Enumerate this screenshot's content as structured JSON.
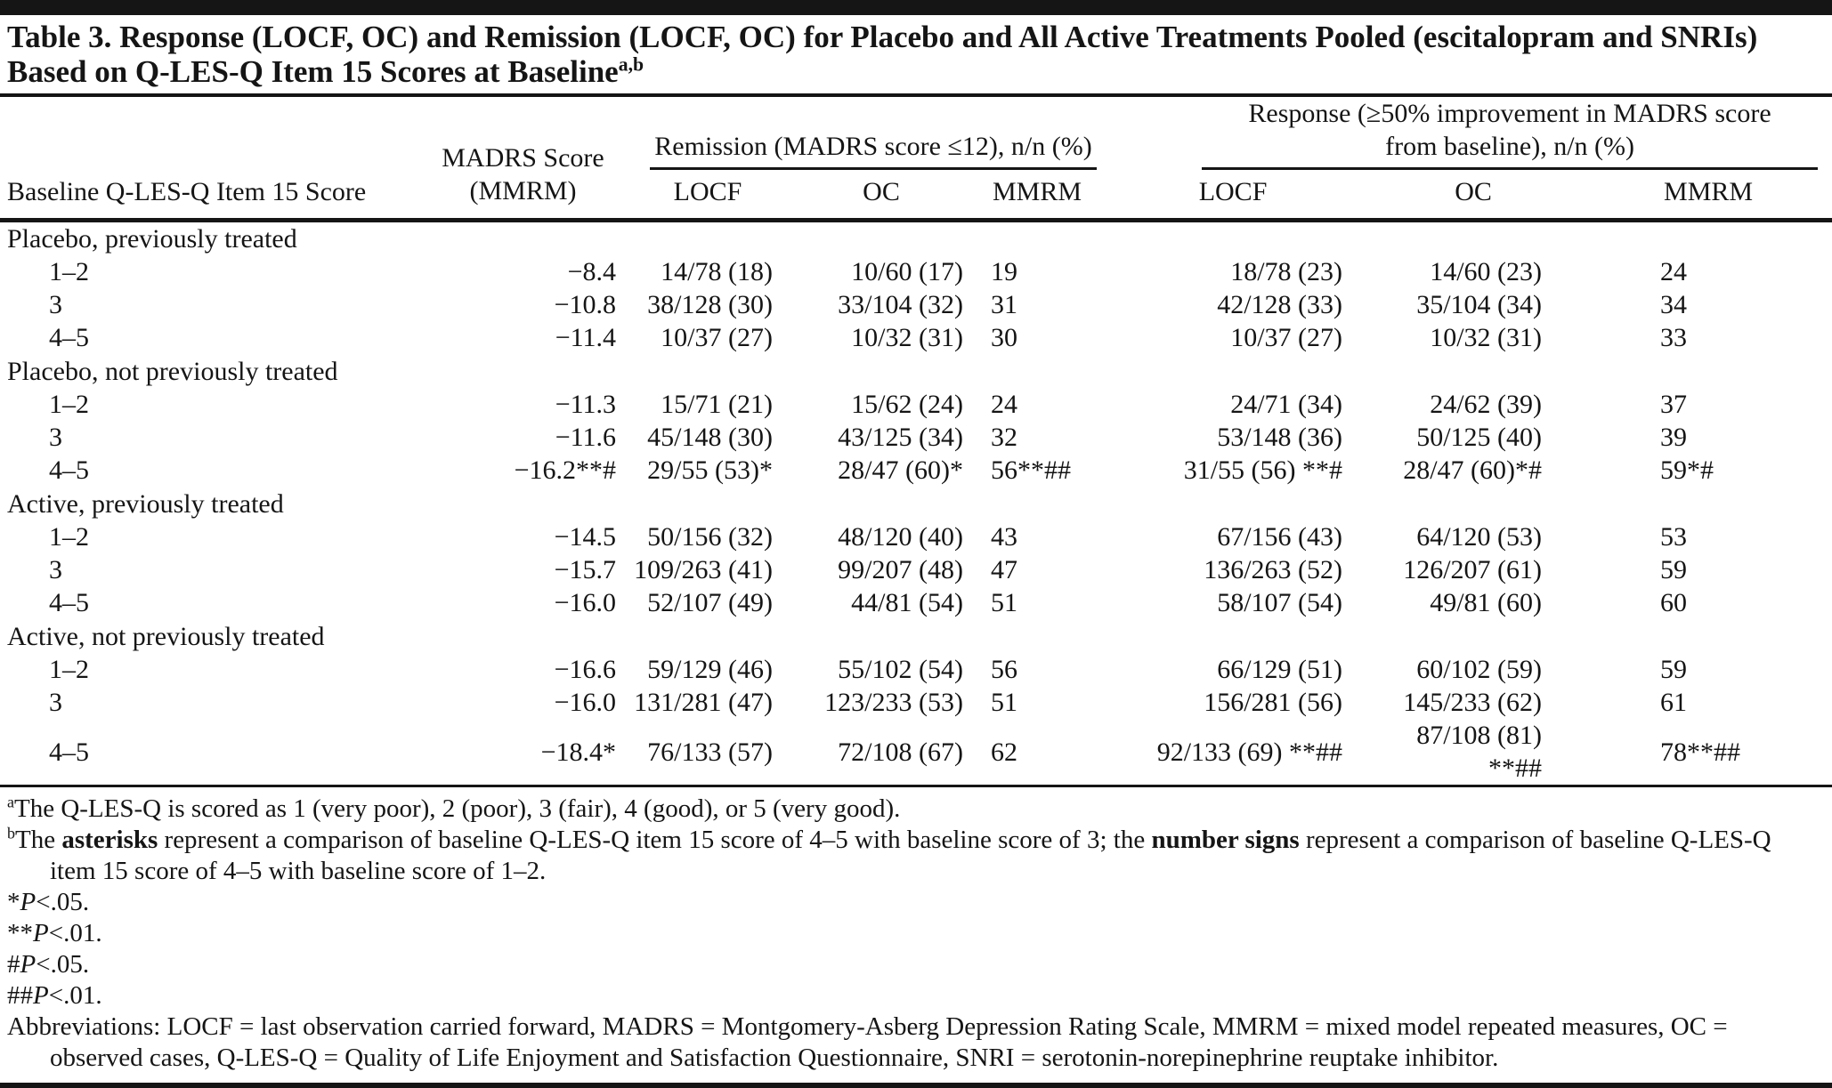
{
  "title": {
    "text": "Table 3. Response (LOCF, OC) and Remission (LOCF, OC) for Placebo and All Active Treatments Pooled (escitalopram and SNRIs) Based on Q-LES-Q Item 15 Scores at Baseline",
    "superscript": "a,b"
  },
  "header": {
    "row_label_column": "Baseline Q-LES-Q Item 15 Score",
    "madrs_column_line1": "MADRS Score",
    "madrs_column_line2": "(MMRM)",
    "remission_group": "Remission (MADRS score ≤12), n/n (%)",
    "response_group_line1": "Response (≥50% improvement in MADRS score",
    "response_group_line2": "from baseline), n/n (%)",
    "sub_columns": {
      "remission_locf": "LOCF",
      "remission_oc": "OC",
      "remission_mmrm": "MMRM",
      "response_locf": "LOCF",
      "response_oc": "OC",
      "response_mmrm": "MMRM"
    }
  },
  "sections": [
    {
      "label": "Placebo, previously treated",
      "rows": [
        {
          "score": "1–2",
          "madrs": "−8.4",
          "remission_locf": "14/78 (18)",
          "remission_oc": "10/60 (17)",
          "remission_mmrm": "19",
          "response_locf": "18/78 (23)",
          "response_oc": "14/60 (23)",
          "response_mmrm": "24"
        },
        {
          "score": "3",
          "madrs": "−10.8",
          "remission_locf": "38/128 (30)",
          "remission_oc": "33/104 (32)",
          "remission_mmrm": "31",
          "response_locf": "42/128 (33)",
          "response_oc": "35/104 (34)",
          "response_mmrm": "34"
        },
        {
          "score": "4–5",
          "madrs": "−11.4",
          "remission_locf": "10/37 (27)",
          "remission_oc": "10/32 (31)",
          "remission_mmrm": "30",
          "response_locf": "10/37 (27)",
          "response_oc": "10/32 (31)",
          "response_mmrm": "33"
        }
      ]
    },
    {
      "label": "Placebo, not previously treated",
      "rows": [
        {
          "score": "1–2",
          "madrs": "−11.3",
          "remission_locf": "15/71 (21)",
          "remission_oc": "15/62 (24)",
          "remission_mmrm": "24",
          "response_locf": "24/71 (34)",
          "response_oc": "24/62 (39)",
          "response_mmrm": "37"
        },
        {
          "score": "3",
          "madrs": "−11.6",
          "remission_locf": "45/148 (30)",
          "remission_oc": "43/125 (34)",
          "remission_mmrm": "32",
          "response_locf": "53/148 (36)",
          "response_oc": "50/125 (40)",
          "response_mmrm": "39"
        },
        {
          "score": "4–5",
          "madrs": "−16.2**#",
          "remission_locf": "29/55 (53)*",
          "remission_oc": "28/47 (60)*",
          "remission_mmrm": "56**##",
          "response_locf": "31/55 (56) **#",
          "response_oc": "28/47 (60)*#",
          "response_mmrm": "59*#"
        }
      ]
    },
    {
      "label": "Active, previously treated",
      "rows": [
        {
          "score": "1–2",
          "madrs": "−14.5",
          "remission_locf": "50/156 (32)",
          "remission_oc": "48/120 (40)",
          "remission_mmrm": "43",
          "response_locf": "67/156 (43)",
          "response_oc": "64/120 (53)",
          "response_mmrm": "53"
        },
        {
          "score": "3",
          "madrs": "−15.7",
          "remission_locf": "109/263 (41)",
          "remission_oc": "99/207 (48)",
          "remission_mmrm": "47",
          "response_locf": "136/263 (52)",
          "response_oc": "126/207 (61)",
          "response_mmrm": "59"
        },
        {
          "score": "4–5",
          "madrs": "−16.0",
          "remission_locf": "52/107 (49)",
          "remission_oc": "44/81 (54)",
          "remission_mmrm": "51",
          "response_locf": "58/107 (54)",
          "response_oc": "49/81 (60)",
          "response_mmrm": "60"
        }
      ]
    },
    {
      "label": "Active, not previously treated",
      "rows": [
        {
          "score": "1–2",
          "madrs": "−16.6",
          "remission_locf": "59/129 (46)",
          "remission_oc": "55/102 (54)",
          "remission_mmrm": "56",
          "response_locf": "66/129 (51)",
          "response_oc": "60/102 (59)",
          "response_mmrm": "59"
        },
        {
          "score": "3",
          "madrs": "−16.0",
          "remission_locf": "131/281 (47)",
          "remission_oc": "123/233 (53)",
          "remission_mmrm": "51",
          "response_locf": "156/281 (56)",
          "response_oc": "145/233 (62)",
          "response_mmrm": "61"
        },
        {
          "score": "4–5",
          "madrs": "−18.4*",
          "remission_locf": "76/133 (57)",
          "remission_oc": "72/108 (67)",
          "remission_mmrm": "62",
          "response_locf": "92/133 (69) **##",
          "response_oc": "87/108 (81) **##",
          "response_mmrm": "78**##"
        }
      ]
    }
  ],
  "footnotes": {
    "a": {
      "sup": "a",
      "text": "The Q-LES-Q is scored as 1 (very poor), 2 (poor), 3 (fair), 4 (good), or 5 (very good)."
    },
    "b": {
      "sup": "b",
      "part1": "The ",
      "bold1": "asterisks",
      "part2": " represent a comparison of baseline Q-LES-Q item 15 score of 4–5 with baseline score of 3; the ",
      "bold2": "number signs",
      "part3": " represent a comparison of baseline Q-LES-Q item 15 score of 4–5 with baseline score of 1–2."
    },
    "p1": {
      "marker": "*",
      "p": "P",
      "rest": "<.05."
    },
    "p2": {
      "marker": "**",
      "p": "P",
      "rest": "<.01."
    },
    "p3": {
      "marker": "#",
      "p": "P",
      "rest": "<.05."
    },
    "p4": {
      "marker": "##",
      "p": "P",
      "rest": "<.01."
    },
    "abbreviations": "Abbreviations: LOCF = last observation carried forward, MADRS = Montgomery-Asberg Depression Rating Scale, MMRM = mixed model repeated measures, OC = observed cases, Q-LES-Q = Quality of Life Enjoyment and Satisfaction Questionnaire, SNRI = serotonin-norepinephrine reuptake inhibitor."
  }
}
